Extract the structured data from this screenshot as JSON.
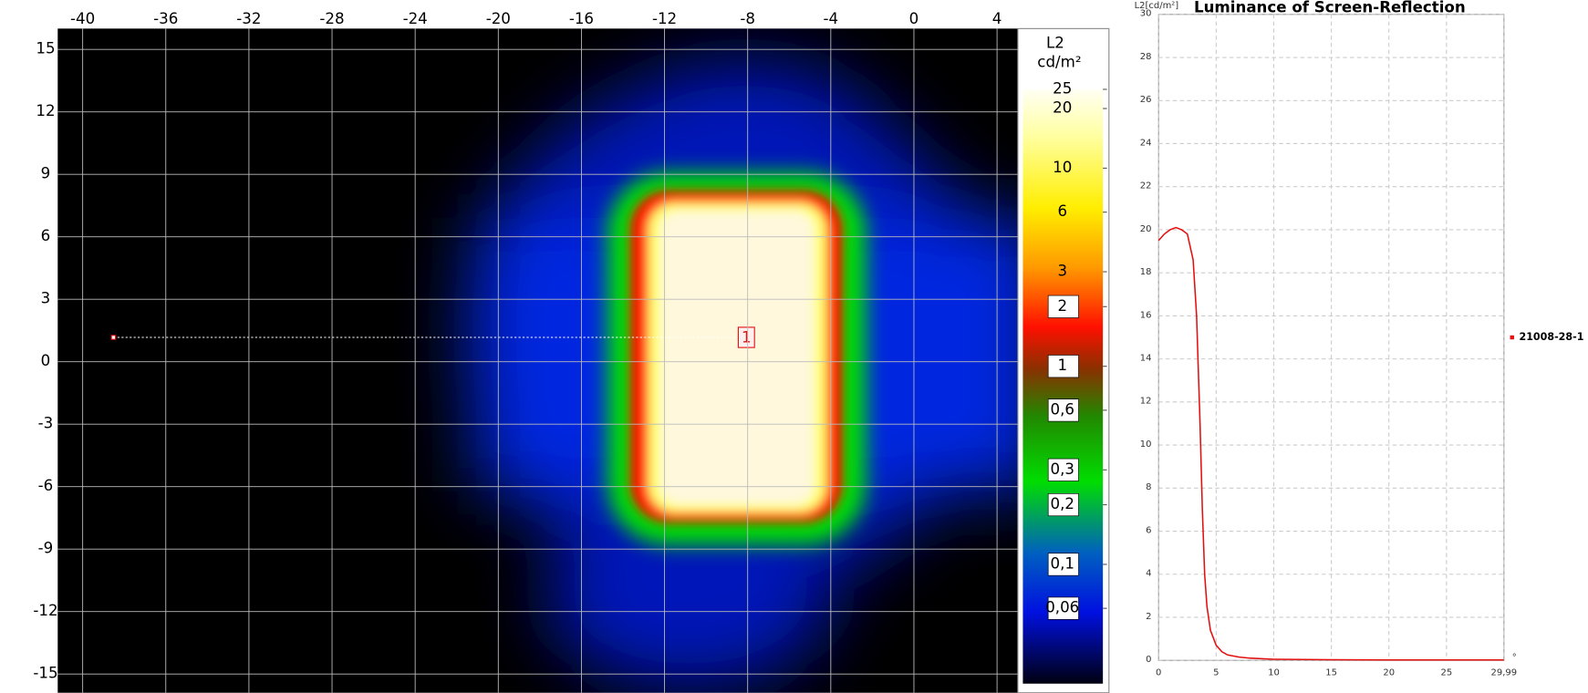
{
  "chart_data": [
    {
      "type": "heatmap",
      "annotations": [
        "1"
      ],
      "xlim": [
        -41.2,
        5
      ],
      "xticks": [
        -40,
        -36,
        -32,
        -28,
        -24,
        -20,
        -16,
        -12,
        -8,
        -4,
        0,
        4
      ],
      "ylim": [
        -15.9,
        16
      ],
      "yticks": [
        15,
        12,
        9,
        6,
        3,
        0,
        -3,
        -6,
        -9,
        -12,
        -15
      ],
      "grid": true,
      "colorbar": {
        "label": "L2",
        "unit": "cd/m²",
        "scale": "log",
        "lim": [
          0.025,
          25
        ],
        "ticks": [
          25,
          20,
          10,
          6,
          3,
          2,
          1,
          {
            "value": 0.6,
            "label": "0,6"
          },
          {
            "value": 0.3,
            "label": "0,3"
          },
          {
            "value": 0.2,
            "label": "0,2"
          },
          {
            "value": 0.1,
            "label": "0,1"
          },
          {
            "value": 0.06,
            "label": "0,06"
          }
        ]
      }
    },
    {
      "type": "line",
      "title": "Luminance of Screen-Reflection",
      "ylabel": "L2[cd/m²]",
      "xlabel": "°",
      "x": [
        0,
        0.5,
        1,
        1.5,
        2,
        2.5,
        3,
        3.3,
        3.6,
        3.8,
        4,
        4.2,
        4.5,
        5,
        5.5,
        6,
        7,
        8,
        10,
        15,
        20,
        25,
        29.99
      ],
      "series": [
        {
          "name": "21008-28-1",
          "color": "#e41010",
          "values": [
            19.5,
            19.8,
            20,
            20.1,
            20,
            19.8,
            18.6,
            16,
            11,
            7,
            4,
            2.5,
            1.4,
            0.7,
            0.4,
            0.25,
            0.15,
            0.1,
            0.05,
            0.03,
            0.02,
            0.02,
            0.02
          ]
        }
      ],
      "xlim": [
        0,
        29.99
      ],
      "xticks": [
        0,
        5,
        10,
        15,
        20,
        25,
        {
          "value": 29.99,
          "label": "29,99"
        }
      ],
      "ylim": [
        0,
        30
      ],
      "yticks": [
        0,
        2,
        4,
        6,
        8,
        10,
        12,
        14,
        16,
        18,
        20,
        22,
        24,
        26,
        28,
        30
      ],
      "grid": true,
      "legend": "right"
    }
  ]
}
